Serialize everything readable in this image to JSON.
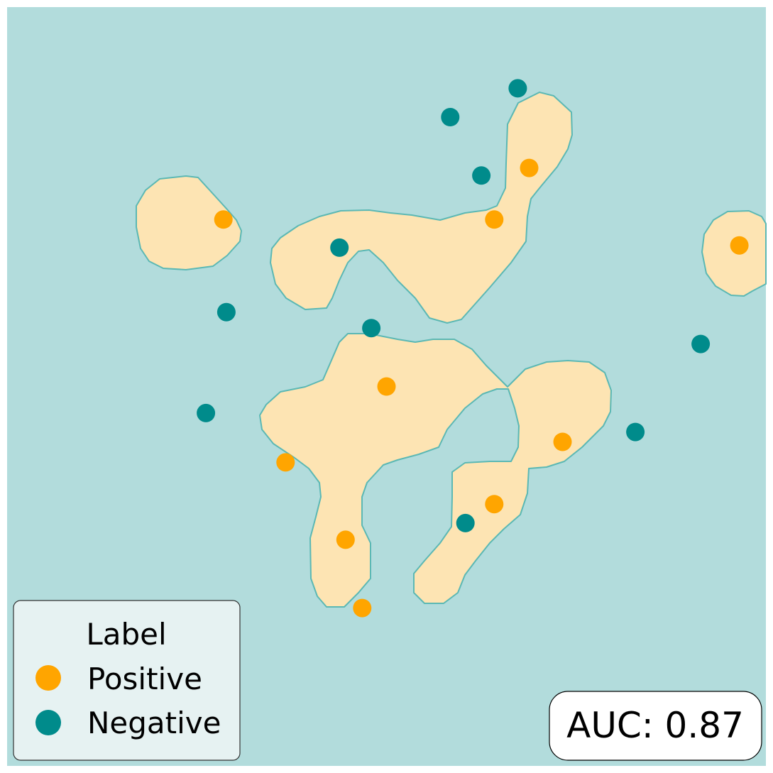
{
  "chart_data": {
    "type": "scatter",
    "title": "",
    "xlabel": "",
    "ylabel": "",
    "xlim": [
      0,
      10
    ],
    "ylim": [
      0,
      10
    ],
    "grid": false,
    "axes_visible": false,
    "background_region": {
      "label": "Negative",
      "color": "#b2dcdc"
    },
    "decision_region": {
      "label": "Positive",
      "color": "#fde4b3",
      "edge_color": "#5bb8b4"
    },
    "series": [
      {
        "name": "Positive",
        "color": "#ffa500",
        "points": [
          [
            2.85,
            7.2
          ],
          [
            6.42,
            7.2
          ],
          [
            6.88,
            7.88
          ],
          [
            9.65,
            6.86
          ],
          [
            5.0,
            5.0
          ],
          [
            7.32,
            4.27
          ],
          [
            3.67,
            4.0
          ],
          [
            6.42,
            3.45
          ],
          [
            4.46,
            2.98
          ],
          [
            4.68,
            2.08
          ]
        ]
      },
      {
        "name": "Negative",
        "color": "#008b8b",
        "points": [
          [
            6.73,
            8.93
          ],
          [
            5.84,
            8.55
          ],
          [
            6.25,
            7.78
          ],
          [
            4.38,
            6.83
          ],
          [
            2.89,
            5.98
          ],
          [
            4.8,
            5.77
          ],
          [
            9.14,
            5.56
          ],
          [
            2.62,
            4.65
          ],
          [
            8.28,
            4.4
          ],
          [
            6.04,
            3.2
          ]
        ]
      }
    ],
    "legend": {
      "title": "Label",
      "placement": "lower-left",
      "entries": [
        {
          "label": "Positive",
          "color": "#ffa500"
        },
        {
          "label": "Negative",
          "color": "#008b8b"
        }
      ]
    },
    "annotation": {
      "text": "AUC: 0.87",
      "placement": "lower-right"
    }
  }
}
